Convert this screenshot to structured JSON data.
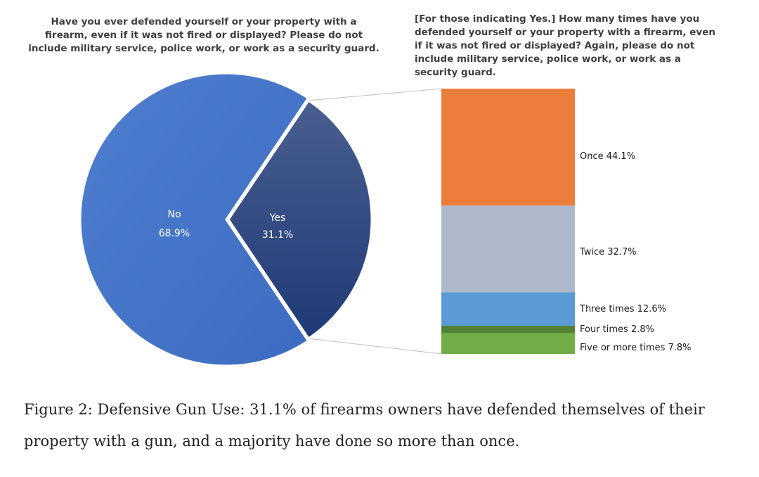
{
  "pie_question": "Have you ever defended yourself or your property with a firearm, even if it was not fired or displayed? Please do not include military service, police work, or work as a security guard.",
  "bar_question": "[For those indicating Yes.] How many times have you defended yourself or your property with a firearm, even if it was not fired or displayed? Again, please do not include military service, police work, or work as a security guard.",
  "caption": "Figure 2: Defensive Gun Use: 31.1% of firearms owners have defended themselves of their property with a gun, and a majority have done so more than once.",
  "chart_data": [
    {
      "type": "pie",
      "slices": [
        {
          "label": "No",
          "value": 68.9,
          "display": "68.9%",
          "color": "#4472c4"
        },
        {
          "label": "Yes",
          "value": 31.1,
          "display": "31.1%",
          "color": "#2e4a86",
          "exploded": true
        }
      ]
    },
    {
      "type": "bar",
      "stacked": true,
      "categories": [
        "Once",
        "Twice",
        "Three times",
        "Four times",
        "Five or more times"
      ],
      "values": [
        44.1,
        32.7,
        12.6,
        2.8,
        7.8
      ],
      "labels": [
        "Once 44.1%",
        "Twice 32.7%",
        "Three times 12.6%",
        "Four times 2.8%",
        "Five or more times 7.8%"
      ],
      "colors": [
        "#ed7d3a",
        "#adb9ca",
        "#5b9bd5",
        "#548235",
        "#70ad47"
      ]
    }
  ]
}
